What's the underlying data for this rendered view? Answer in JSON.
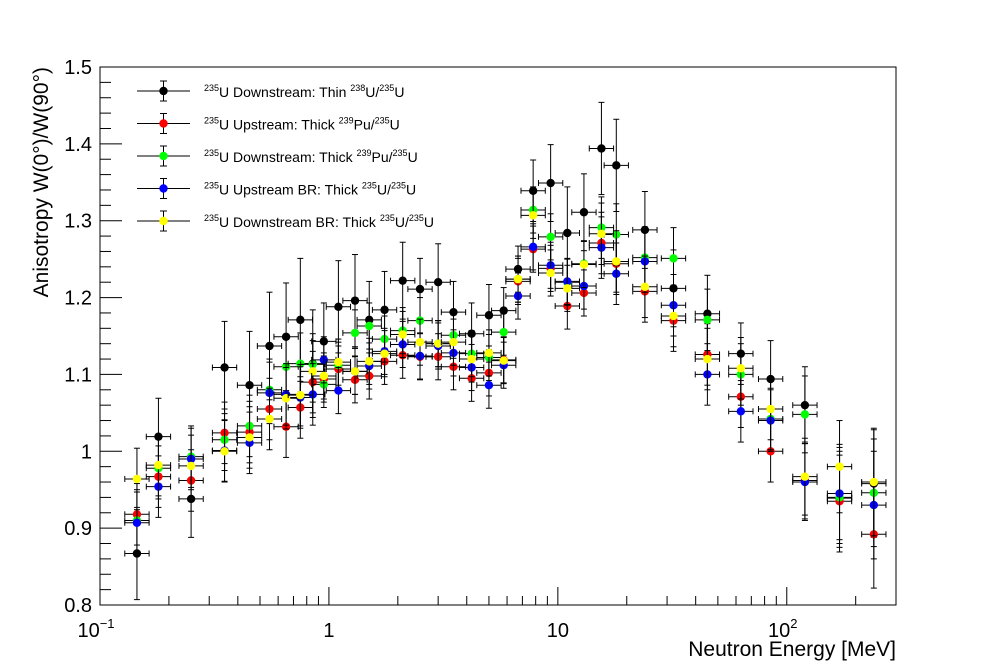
{
  "chart_data": {
    "type": "scatter",
    "title": "",
    "xlabel": "Neutron Energy [MeV]",
    "ylabel": "Anisotropy W(0°)/W(90°)",
    "xscale": "log",
    "xlim": [
      0.1,
      300
    ],
    "ylim": [
      0.8,
      1.5
    ],
    "yticks": [
      0.8,
      0.9,
      1.0,
      1.1,
      1.2,
      1.3,
      1.4,
      1.5
    ],
    "ytick_labels": [
      "0.8",
      "0.9",
      "1",
      "1.1",
      "1.2",
      "1.3",
      "1.4",
      "1.5"
    ],
    "xticks": [
      {
        "value": 0.1,
        "base": "10",
        "exp": "−1"
      },
      {
        "value": 1,
        "label": "1"
      },
      {
        "value": 10,
        "label": "10"
      },
      {
        "value": 100,
        "base": "10",
        "exp": "2"
      }
    ],
    "legend_position": "top-left",
    "series": [
      {
        "name": "235U Downstream: Thin 238U/235U",
        "legend": {
          "s1": "235",
          "t1": "U Downstream: Thin ",
          "s2": "238",
          "t2": "U/",
          "s3": "235",
          "t3": "U"
        },
        "color": "#000000",
        "x": [
          0.145,
          0.18,
          0.25,
          0.35,
          0.45,
          0.55,
          0.65,
          0.75,
          0.85,
          0.95,
          1.1,
          1.3,
          1.5,
          1.75,
          2.1,
          2.5,
          3.0,
          3.5,
          4.2,
          5.0,
          5.8,
          6.7,
          7.8,
          9.3,
          11,
          13,
          15.5,
          18,
          24,
          32,
          45,
          63,
          85,
          120,
          170,
          240
        ],
        "y": [
          0.867,
          1.019,
          0.938,
          1.109,
          1.086,
          1.137,
          1.149,
          1.171,
          1.114,
          1.143,
          1.188,
          1.196,
          1.171,
          1.184,
          1.222,
          1.211,
          1.22,
          1.181,
          1.153,
          1.177,
          1.183,
          1.237,
          1.339,
          1.349,
          1.284,
          1.311,
          1.394,
          1.372,
          1.288,
          1.212,
          1.179,
          1.127,
          1.094,
          1.06,
          0.939,
          0.958
        ],
        "yerr": [
          0.06,
          0.05,
          0.05,
          0.06,
          0.07,
          0.07,
          0.07,
          0.08,
          0.07,
          0.05,
          0.06,
          0.06,
          0.05,
          0.05,
          0.05,
          0.04,
          0.05,
          0.04,
          0.04,
          0.04,
          0.03,
          0.03,
          0.04,
          0.05,
          0.06,
          0.05,
          0.06,
          0.06,
          0.05,
          0.05,
          0.05,
          0.04,
          0.05,
          0.05,
          0.07,
          0.07
        ]
      },
      {
        "name": "235U Upstream: Thick 239Pu/235U",
        "legend": {
          "s1": "235",
          "t1": "U Upstream: Thick ",
          "s2": "239",
          "t2": "Pu/",
          "s3": "235",
          "t3": "U"
        },
        "color": "#ff0000",
        "x": [
          0.145,
          0.18,
          0.25,
          0.35,
          0.45,
          0.55,
          0.65,
          0.75,
          0.85,
          0.95,
          1.1,
          1.3,
          1.5,
          1.75,
          2.1,
          2.5,
          3.0,
          3.5,
          4.2,
          5.0,
          5.8,
          6.7,
          7.8,
          9.3,
          11,
          13,
          15.5,
          18,
          24,
          32,
          45,
          63,
          85,
          120,
          170,
          240
        ],
        "y": [
          0.918,
          0.967,
          0.962,
          1.024,
          1.025,
          1.055,
          1.032,
          1.057,
          1.09,
          1.094,
          1.107,
          1.093,
          1.098,
          1.117,
          1.125,
          1.123,
          1.123,
          1.11,
          1.095,
          1.102,
          1.119,
          1.221,
          1.263,
          1.238,
          1.189,
          1.206,
          1.271,
          1.244,
          1.208,
          1.17,
          1.126,
          1.071,
          1.0,
          0.962,
          0.935,
          0.892
        ],
        "yerr": [
          0.04,
          0.04,
          0.04,
          0.04,
          0.04,
          0.04,
          0.04,
          0.04,
          0.04,
          0.03,
          0.03,
          0.03,
          0.03,
          0.03,
          0.03,
          0.03,
          0.03,
          0.03,
          0.03,
          0.03,
          0.03,
          0.03,
          0.03,
          0.03,
          0.03,
          0.03,
          0.04,
          0.04,
          0.04,
          0.04,
          0.04,
          0.04,
          0.04,
          0.05,
          0.06,
          0.07
        ]
      },
      {
        "name": "235U Downstream: Thick 239Pu/235U",
        "legend": {
          "s1": "235",
          "t1": "U Downstream: Thick ",
          "s2": "239",
          "t2": "Pu/",
          "s3": "235",
          "t3": "U"
        },
        "color": "#00ff00",
        "x": [
          0.145,
          0.18,
          0.25,
          0.35,
          0.45,
          0.55,
          0.65,
          0.75,
          0.85,
          0.95,
          1.1,
          1.3,
          1.5,
          1.75,
          2.1,
          2.5,
          3.0,
          3.5,
          4.2,
          5.0,
          5.8,
          6.7,
          7.8,
          9.3,
          11,
          13,
          15.5,
          18,
          24,
          32,
          45,
          63,
          85,
          120,
          170,
          240
        ],
        "y": [
          0.91,
          0.978,
          0.993,
          1.015,
          1.033,
          1.08,
          1.11,
          1.114,
          1.113,
          1.087,
          1.112,
          1.154,
          1.163,
          1.146,
          1.157,
          1.17,
          1.14,
          1.151,
          1.127,
          1.122,
          1.155,
          1.224,
          1.314,
          1.279,
          1.22,
          1.244,
          1.291,
          1.282,
          1.252,
          1.251,
          1.171,
          1.1,
          1.042,
          1.048,
          0.94,
          0.946
        ],
        "yerr": [
          0.04,
          0.04,
          0.04,
          0.04,
          0.04,
          0.04,
          0.04,
          0.04,
          0.04,
          0.03,
          0.03,
          0.03,
          0.03,
          0.03,
          0.03,
          0.03,
          0.03,
          0.03,
          0.03,
          0.03,
          0.03,
          0.03,
          0.03,
          0.03,
          0.03,
          0.03,
          0.04,
          0.04,
          0.04,
          0.04,
          0.04,
          0.04,
          0.04,
          0.05,
          0.06,
          0.07
        ]
      },
      {
        "name": "235U Upstream BR: Thick 235U/235U",
        "legend": {
          "s1": "235",
          "t1": "U Upstream BR: Thick ",
          "s2": "235",
          "t2": "U/",
          "s3": "235",
          "t3": "U"
        },
        "color": "#0000ff",
        "x": [
          0.145,
          0.18,
          0.25,
          0.35,
          0.45,
          0.55,
          0.65,
          0.75,
          0.85,
          0.95,
          1.1,
          1.3,
          1.5,
          1.75,
          2.1,
          2.5,
          3.0,
          3.5,
          4.2,
          5.0,
          5.8,
          6.7,
          7.8,
          9.3,
          11,
          13,
          15.5,
          18,
          24,
          32,
          45,
          63,
          85,
          120,
          170,
          240
        ],
        "y": [
          0.907,
          0.954,
          0.99,
          1.001,
          1.011,
          1.076,
          1.074,
          1.07,
          1.074,
          1.119,
          1.079,
          1.104,
          1.111,
          1.13,
          1.139,
          1.124,
          1.137,
          1.128,
          1.109,
          1.086,
          1.112,
          1.202,
          1.266,
          1.242,
          1.221,
          1.215,
          1.265,
          1.231,
          1.247,
          1.19,
          1.1,
          1.052,
          1.04,
          0.96,
          0.945,
          0.93
        ],
        "yerr": [
          0.04,
          0.04,
          0.04,
          0.04,
          0.04,
          0.04,
          0.04,
          0.04,
          0.04,
          0.03,
          0.03,
          0.03,
          0.03,
          0.03,
          0.03,
          0.03,
          0.03,
          0.03,
          0.03,
          0.03,
          0.03,
          0.03,
          0.03,
          0.03,
          0.03,
          0.03,
          0.04,
          0.04,
          0.04,
          0.04,
          0.04,
          0.04,
          0.04,
          0.05,
          0.06,
          0.07
        ]
      },
      {
        "name": "235U Downstream BR: Thick 235U/235U",
        "legend": {
          "s1": "235",
          "t1": "U Downstream BR: Thick ",
          "s2": "235",
          "t2": "U/",
          "s3": "235",
          "t3": "U"
        },
        "color": "#ffff00",
        "x": [
          0.145,
          0.18,
          0.25,
          0.35,
          0.45,
          0.55,
          0.65,
          0.75,
          0.85,
          0.95,
          1.1,
          1.3,
          1.5,
          1.75,
          2.1,
          2.5,
          3.0,
          3.5,
          4.2,
          5.0,
          5.8,
          6.7,
          7.8,
          9.3,
          11,
          13,
          15.5,
          18,
          24,
          32,
          45,
          63,
          85,
          120,
          170,
          240
        ],
        "y": [
          0.964,
          0.982,
          0.981,
          1.0,
          1.018,
          1.042,
          1.069,
          1.073,
          1.104,
          1.098,
          1.116,
          1.104,
          1.117,
          1.127,
          1.152,
          1.142,
          1.14,
          1.142,
          1.12,
          1.128,
          1.118,
          1.224,
          1.307,
          1.232,
          1.212,
          1.243,
          1.283,
          1.247,
          1.214,
          1.176,
          1.12,
          1.108,
          1.055,
          0.967,
          0.98,
          0.96
        ],
        "yerr": [
          0.04,
          0.04,
          0.04,
          0.04,
          0.04,
          0.04,
          0.04,
          0.04,
          0.04,
          0.03,
          0.03,
          0.03,
          0.03,
          0.03,
          0.03,
          0.03,
          0.03,
          0.03,
          0.03,
          0.03,
          0.03,
          0.03,
          0.03,
          0.03,
          0.03,
          0.03,
          0.04,
          0.04,
          0.04,
          0.04,
          0.04,
          0.04,
          0.04,
          0.05,
          0.06,
          0.07
        ]
      }
    ]
  }
}
